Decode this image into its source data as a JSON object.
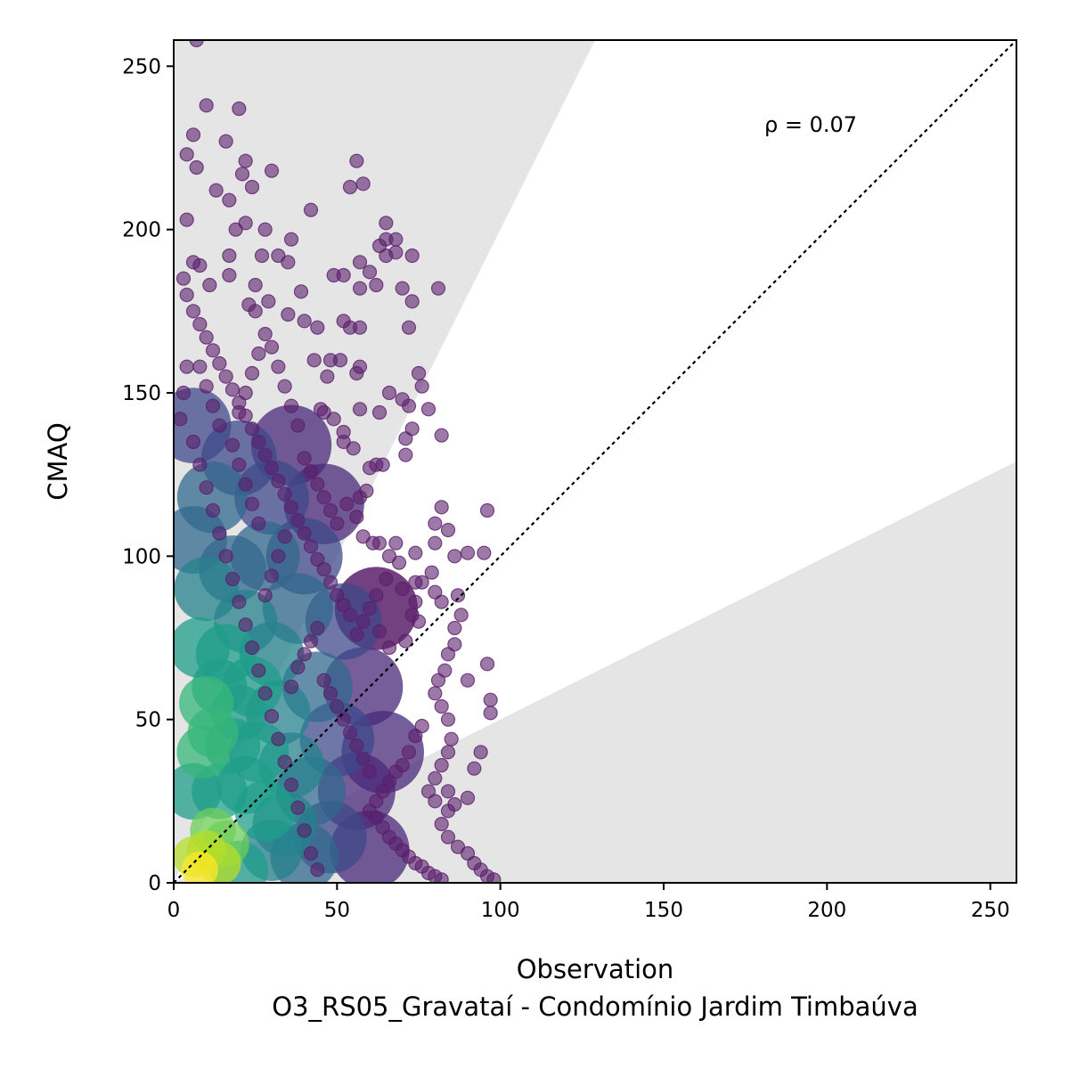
{
  "chart_data": {
    "type": "scatter",
    "xlabel": "Observation",
    "ylabel": "CMAQ",
    "subtitle": "O3_RS05_Gravataí - Condomínio Jardim Timbaúva",
    "annotation": "ρ = 0.07",
    "xlim": [
      0,
      258
    ],
    "ylim": [
      0,
      258
    ],
    "xticks": [
      0,
      50,
      100,
      150,
      200,
      250
    ],
    "yticks": [
      0,
      50,
      100,
      150,
      200,
      250
    ],
    "grid": false,
    "reference_line": {
      "slope": 1,
      "style": "dotted",
      "color": "#000000"
    },
    "shaded_regions": {
      "upper_slope": 2,
      "lower_slope": 0.5,
      "color": "#e5e5e5"
    },
    "colormap": "viridis",
    "density_colors": [
      "#440154",
      "#482878",
      "#3e4989",
      "#31688e",
      "#26828e",
      "#1f9e89",
      "#35b779",
      "#6ece58",
      "#b5de2b",
      "#fde725"
    ],
    "outlier_color": "#5b1f6d",
    "points": [
      [
        7,
        258
      ],
      [
        10,
        238
      ],
      [
        20,
        237
      ],
      [
        6,
        229
      ],
      [
        4,
        223
      ],
      [
        7,
        219
      ],
      [
        16,
        227
      ],
      [
        22,
        221
      ],
      [
        30,
        218
      ],
      [
        56,
        221
      ],
      [
        58,
        214
      ],
      [
        54,
        213
      ],
      [
        13,
        212
      ],
      [
        17,
        209
      ],
      [
        21,
        217
      ],
      [
        24,
        213
      ],
      [
        4,
        203
      ],
      [
        42,
        206
      ],
      [
        65,
        202
      ],
      [
        63,
        195
      ],
      [
        65,
        197
      ],
      [
        68,
        197
      ],
      [
        68,
        193
      ],
      [
        73,
        192
      ],
      [
        65,
        192
      ],
      [
        57,
        190
      ],
      [
        49,
        186
      ],
      [
        60,
        187
      ],
      [
        57,
        182
      ],
      [
        52,
        186
      ],
      [
        81,
        182
      ],
      [
        70,
        182
      ],
      [
        62,
        183
      ],
      [
        39,
        181
      ],
      [
        32,
        192
      ],
      [
        35,
        190
      ],
      [
        36,
        197
      ],
      [
        28,
        200
      ],
      [
        22,
        202
      ],
      [
        19,
        200
      ],
      [
        17,
        192
      ],
      [
        27,
        192
      ],
      [
        6,
        190
      ],
      [
        8,
        189
      ],
      [
        3,
        185
      ],
      [
        4,
        180
      ],
      [
        11,
        183
      ],
      [
        17,
        186
      ],
      [
        25,
        183
      ],
      [
        29,
        178
      ],
      [
        25,
        175
      ],
      [
        23,
        177
      ],
      [
        35,
        174
      ],
      [
        40,
        172
      ],
      [
        44,
        170
      ],
      [
        52,
        172
      ],
      [
        54,
        170
      ],
      [
        57,
        170
      ],
      [
        72,
        170
      ],
      [
        73,
        178
      ],
      [
        75,
        156
      ],
      [
        76,
        152
      ],
      [
        72,
        146
      ],
      [
        73,
        139
      ],
      [
        71,
        136
      ],
      [
        78,
        145
      ],
      [
        82,
        137
      ],
      [
        66,
        150
      ],
      [
        70,
        148
      ],
      [
        63,
        144
      ],
      [
        57,
        145
      ],
      [
        56,
        156
      ],
      [
        57,
        158
      ],
      [
        47,
        155
      ],
      [
        48,
        160
      ],
      [
        51,
        160
      ],
      [
        43,
        160
      ],
      [
        45,
        145
      ],
      [
        46,
        144
      ],
      [
        49,
        142
      ],
      [
        52,
        135
      ],
      [
        52,
        138
      ],
      [
        55,
        133
      ],
      [
        60,
        127
      ],
      [
        62,
        128
      ],
      [
        64,
        128
      ],
      [
        71,
        131
      ],
      [
        59,
        120
      ],
      [
        57,
        118
      ],
      [
        53,
        116
      ],
      [
        56,
        112
      ],
      [
        58,
        106
      ],
      [
        61,
        104
      ],
      [
        63,
        104
      ],
      [
        68,
        104
      ],
      [
        66,
        100
      ],
      [
        69,
        98
      ],
      [
        74,
        101
      ],
      [
        80,
        104
      ],
      [
        80,
        110
      ],
      [
        82,
        115
      ],
      [
        84,
        108
      ],
      [
        86,
        100
      ],
      [
        90,
        101
      ],
      [
        96,
        114
      ],
      [
        95,
        101
      ],
      [
        79,
        95
      ],
      [
        76,
        92
      ],
      [
        74,
        92
      ],
      [
        70,
        90
      ],
      [
        65,
        93
      ],
      [
        62,
        88
      ],
      [
        60,
        84
      ],
      [
        63,
        77
      ],
      [
        66,
        72
      ],
      [
        71,
        74
      ],
      [
        73,
        82
      ],
      [
        74,
        86
      ],
      [
        75,
        80
      ],
      [
        80,
        89
      ],
      [
        82,
        86
      ],
      [
        87,
        88
      ],
      [
        88,
        82
      ],
      [
        86,
        78
      ],
      [
        86,
        73
      ],
      [
        84,
        70
      ],
      [
        83,
        65
      ],
      [
        81,
        62
      ],
      [
        80,
        58
      ],
      [
        82,
        54
      ],
      [
        84,
        50
      ],
      [
        85,
        44
      ],
      [
        84,
        40
      ],
      [
        82,
        36
      ],
      [
        80,
        32
      ],
      [
        78,
        28
      ],
      [
        80,
        25
      ],
      [
        84,
        28
      ],
      [
        86,
        24
      ],
      [
        90,
        26
      ],
      [
        84,
        22
      ],
      [
        82,
        18
      ],
      [
        84,
        14
      ],
      [
        87,
        11
      ],
      [
        90,
        9
      ],
      [
        92,
        6
      ],
      [
        94,
        4
      ],
      [
        96,
        2
      ],
      [
        98,
        1
      ],
      [
        92,
        35
      ],
      [
        94,
        40
      ],
      [
        97,
        52
      ],
      [
        97,
        56
      ],
      [
        96,
        67
      ],
      [
        90,
        62
      ],
      [
        76,
        48
      ],
      [
        74,
        45
      ],
      [
        72,
        40
      ],
      [
        70,
        36
      ],
      [
        68,
        34
      ],
      [
        66,
        31
      ],
      [
        64,
        28
      ],
      [
        62,
        25
      ],
      [
        60,
        22
      ],
      [
        62,
        20
      ],
      [
        64,
        17
      ],
      [
        66,
        14
      ],
      [
        68,
        12
      ],
      [
        70,
        10
      ],
      [
        72,
        8
      ],
      [
        74,
        6
      ],
      [
        76,
        5
      ],
      [
        78,
        3
      ],
      [
        80,
        2
      ],
      [
        82,
        1
      ],
      [
        56,
        76
      ],
      [
        58,
        80
      ],
      [
        54,
        82
      ],
      [
        52,
        85
      ],
      [
        50,
        88
      ],
      [
        48,
        92
      ],
      [
        46,
        96
      ],
      [
        44,
        99
      ],
      [
        42,
        103
      ],
      [
        40,
        107
      ],
      [
        38,
        111
      ],
      [
        36,
        115
      ],
      [
        34,
        119
      ],
      [
        32,
        123
      ],
      [
        30,
        127
      ],
      [
        28,
        131
      ],
      [
        26,
        135
      ],
      [
        24,
        139
      ],
      [
        22,
        143
      ],
      [
        20,
        147
      ],
      [
        18,
        151
      ],
      [
        16,
        155
      ],
      [
        14,
        159
      ],
      [
        12,
        163
      ],
      [
        10,
        167
      ],
      [
        8,
        171
      ],
      [
        6,
        175
      ],
      [
        4,
        158
      ],
      [
        3,
        150
      ],
      [
        2,
        142
      ],
      [
        6,
        135
      ],
      [
        8,
        128
      ],
      [
        10,
        121
      ],
      [
        12,
        114
      ],
      [
        14,
        107
      ],
      [
        16,
        100
      ],
      [
        18,
        93
      ],
      [
        20,
        86
      ],
      [
        22,
        79
      ],
      [
        24,
        72
      ],
      [
        26,
        65
      ],
      [
        28,
        58
      ],
      [
        30,
        51
      ],
      [
        32,
        44
      ],
      [
        34,
        37
      ],
      [
        36,
        30
      ],
      [
        38,
        23
      ],
      [
        40,
        16
      ],
      [
        42,
        9
      ],
      [
        44,
        4
      ],
      [
        36,
        60
      ],
      [
        38,
        66
      ],
      [
        40,
        70
      ],
      [
        42,
        74
      ],
      [
        44,
        78
      ],
      [
        46,
        62
      ],
      [
        48,
        58
      ],
      [
        50,
        54
      ],
      [
        52,
        50
      ],
      [
        54,
        46
      ],
      [
        56,
        42
      ],
      [
        58,
        38
      ],
      [
        60,
        34
      ],
      [
        28,
        88
      ],
      [
        30,
        94
      ],
      [
        32,
        100
      ],
      [
        34,
        106
      ],
      [
        26,
        110
      ],
      [
        24,
        116
      ],
      [
        22,
        122
      ],
      [
        20,
        128
      ],
      [
        18,
        134
      ],
      [
        14,
        140
      ],
      [
        12,
        146
      ],
      [
        10,
        152
      ],
      [
        8,
        158
      ],
      [
        40,
        130
      ],
      [
        42,
        126
      ],
      [
        44,
        122
      ],
      [
        46,
        118
      ],
      [
        48,
        114
      ],
      [
        50,
        110
      ],
      [
        38,
        140
      ],
      [
        36,
        146
      ],
      [
        34,
        152
      ],
      [
        32,
        158
      ],
      [
        30,
        164
      ],
      [
        28,
        168
      ],
      [
        26,
        162
      ],
      [
        24,
        156
      ],
      [
        22,
        150
      ],
      [
        20,
        144
      ]
    ],
    "density_blobs": [
      [
        8,
        4,
        0.98
      ],
      [
        10,
        10,
        0.92
      ],
      [
        6,
        8,
        0.9
      ],
      [
        14,
        6,
        0.85
      ],
      [
        12,
        16,
        0.8
      ],
      [
        16,
        12,
        0.78
      ],
      [
        9,
        40,
        0.66
      ],
      [
        12,
        46,
        0.7
      ],
      [
        10,
        55,
        0.62
      ],
      [
        14,
        60,
        0.6
      ],
      [
        18,
        42,
        0.6
      ],
      [
        20,
        52,
        0.58
      ],
      [
        6,
        28,
        0.58
      ],
      [
        14,
        28,
        0.6
      ],
      [
        22,
        30,
        0.55
      ],
      [
        26,
        40,
        0.5
      ],
      [
        24,
        60,
        0.5
      ],
      [
        28,
        22,
        0.5
      ],
      [
        30,
        10,
        0.48
      ],
      [
        20,
        4,
        0.55
      ],
      [
        16,
        70,
        0.5
      ],
      [
        8,
        72,
        0.5
      ],
      [
        22,
        80,
        0.44
      ],
      [
        10,
        90,
        0.42
      ],
      [
        30,
        70,
        0.42
      ],
      [
        32,
        52,
        0.42
      ],
      [
        36,
        36,
        0.4
      ],
      [
        34,
        18,
        0.42
      ],
      [
        40,
        8,
        0.35
      ],
      [
        18,
        96,
        0.36
      ],
      [
        28,
        100,
        0.32
      ],
      [
        6,
        105,
        0.36
      ],
      [
        38,
        84,
        0.3
      ],
      [
        44,
        60,
        0.3
      ],
      [
        42,
        28,
        0.32
      ],
      [
        48,
        14,
        0.26
      ],
      [
        12,
        118,
        0.28
      ],
      [
        30,
        118,
        0.22
      ],
      [
        50,
        44,
        0.22
      ],
      [
        52,
        80,
        0.18
      ],
      [
        20,
        130,
        0.2
      ],
      [
        6,
        140,
        0.2
      ],
      [
        56,
        28,
        0.16
      ],
      [
        40,
        100,
        0.18
      ],
      [
        58,
        60,
        0.12
      ],
      [
        36,
        134,
        0.1
      ],
      [
        60,
        10,
        0.12
      ],
      [
        46,
        116,
        0.1
      ],
      [
        64,
        40,
        0.06
      ],
      [
        62,
        84,
        0.05
      ]
    ]
  }
}
